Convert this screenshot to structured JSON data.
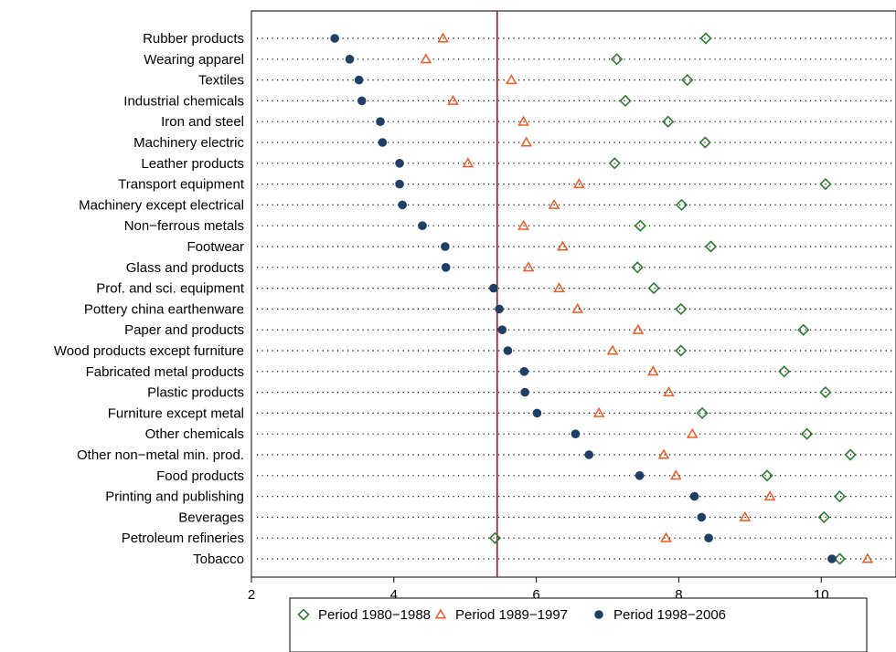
{
  "chart_data": {
    "type": "scatter",
    "title": "",
    "xlabel": "",
    "ylabel": "",
    "xlim": [
      2,
      11.05
    ],
    "xticks": [
      "2",
      "4",
      "6",
      "8",
      "10"
    ],
    "reference_line_x": 5.45,
    "grid": "dotted horizontal lines per category",
    "legend_position": "bottom",
    "categories": [
      "Rubber products",
      "Wearing apparel",
      "Textiles",
      "Industrial chemicals",
      "Iron and steel",
      "Machinery electric",
      "Leather products",
      "Transport equipment",
      "Machinery except electrical",
      "Non−ferrous metals",
      "Footwear",
      "Glass and products",
      "Prof. and sci. equipment",
      "Pottery china earthenware",
      "Paper and products",
      "Wood products except furniture",
      "Fabricated metal products",
      "Plastic products",
      "Furniture except metal",
      "Other chemicals",
      "Other non−metal min. prod.",
      "Food products",
      "Printing and publishing",
      "Beverages",
      "Petroleum refineries",
      "Tobacco"
    ],
    "series": [
      {
        "name": "Period 1980−1988",
        "marker": "diamond",
        "color": "#2e7d32",
        "values": [
          8.38,
          7.13,
          8.12,
          7.25,
          7.85,
          8.37,
          7.1,
          10.06,
          8.04,
          7.46,
          8.45,
          7.42,
          7.65,
          8.03,
          9.75,
          8.03,
          9.48,
          10.06,
          8.33,
          9.8,
          10.41,
          9.24,
          10.26,
          10.04,
          5.42,
          10.26
        ]
      },
      {
        "name": "Period 1989−1997",
        "marker": "triangle",
        "color": "#f05a22",
        "values": [
          4.69,
          4.45,
          5.65,
          4.83,
          5.82,
          5.86,
          5.04,
          6.6,
          6.25,
          5.82,
          6.37,
          5.89,
          6.32,
          6.58,
          7.43,
          7.07,
          7.64,
          7.86,
          6.88,
          8.19,
          7.79,
          7.96,
          9.28,
          8.93,
          7.82,
          10.65
        ]
      },
      {
        "name": "Period 1998−2006",
        "marker": "circle",
        "color": "#1f3f66",
        "values": [
          3.17,
          3.38,
          3.51,
          3.55,
          3.81,
          3.84,
          4.08,
          4.08,
          4.12,
          4.4,
          4.72,
          4.73,
          5.4,
          5.48,
          5.52,
          5.6,
          5.83,
          5.84,
          6.01,
          6.55,
          6.74,
          7.45,
          8.22,
          8.32,
          8.42,
          10.15
        ]
      }
    ]
  }
}
